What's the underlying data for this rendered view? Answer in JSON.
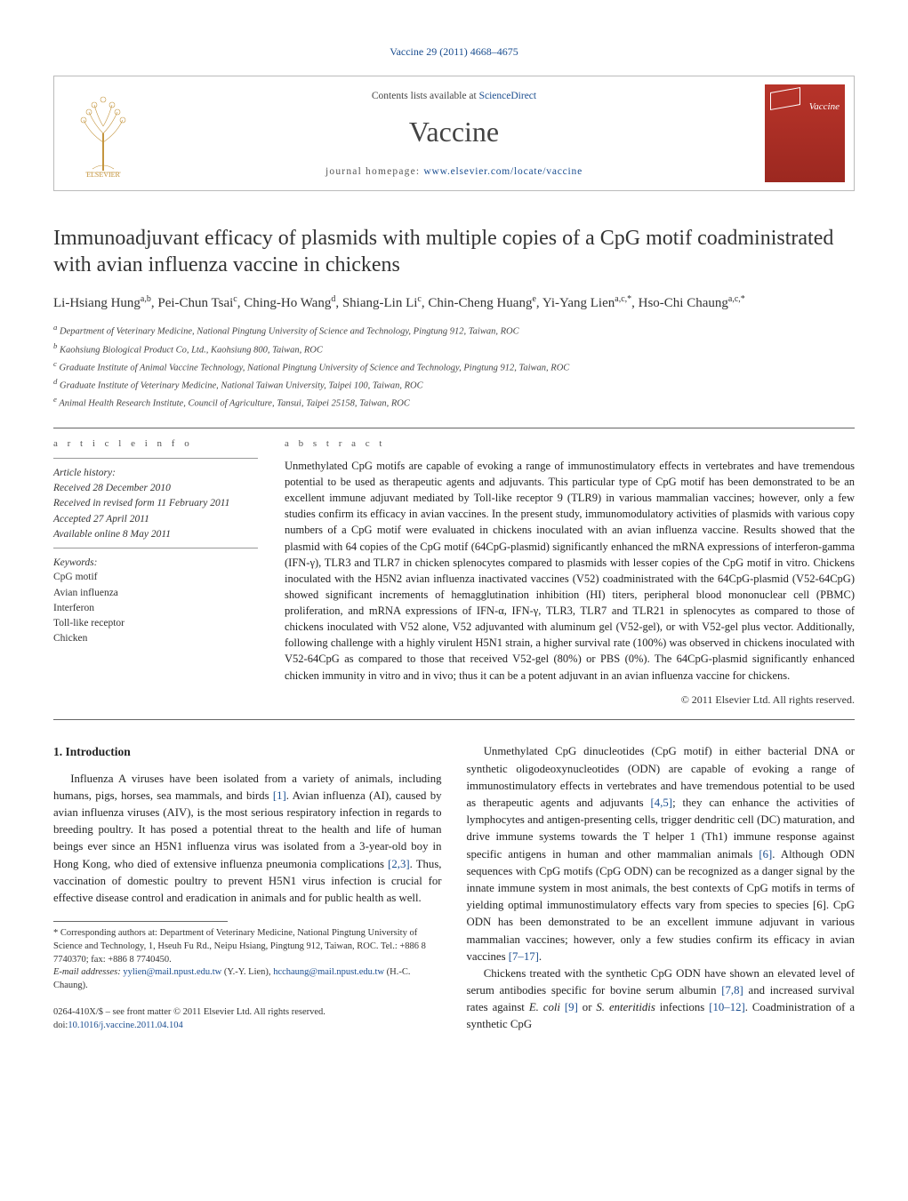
{
  "journal_ref_prefix": "Vaccine 29 (2011) 4668–4675",
  "header": {
    "contents_prefix": "Contents lists available at ",
    "contents_link": "ScienceDirect",
    "journal_name": "Vaccine",
    "homepage_prefix": "journal homepage: ",
    "homepage_link": "www.elsevier.com/locate/vaccine",
    "cover_label": "Vaccine"
  },
  "article": {
    "title": "Immunoadjuvant efficacy of plasmids with multiple copies of a CpG motif coadministrated with avian influenza vaccine in chickens",
    "authors_html": "Li-Hsiang Hung<sup>a,b</sup>, Pei-Chun Tsai<sup>c</sup>, Ching-Ho Wang<sup>d</sup>, Shiang-Lin Li<sup>c</sup>, Chin-Cheng Huang<sup>e</sup>, Yi-Yang Lien<sup>a,c,*</sup>, Hso-Chi Chaung<sup>a,c,*</sup>",
    "affiliations": [
      "a Department of Veterinary Medicine, National Pingtung University of Science and Technology, Pingtung 912, Taiwan, ROC",
      "b Kaohsiung Biological Product Co, Ltd., Kaohsiung 800, Taiwan, ROC",
      "c Graduate Institute of Animal Vaccine Technology, National Pingtung University of Science and Technology, Pingtung 912, Taiwan, ROC",
      "d Graduate Institute of Veterinary Medicine, National Taiwan University, Taipei 100, Taiwan, ROC",
      "e Animal Health Research Institute, Council of Agriculture, Tansui, Taipei 25158, Taiwan, ROC"
    ]
  },
  "info": {
    "head": "a r t i c l e   i n f o",
    "history_label": "Article history:",
    "history": [
      "Received 28 December 2010",
      "Received in revised form 11 February 2011",
      "Accepted 27 April 2011",
      "Available online 8 May 2011"
    ],
    "keywords_label": "Keywords:",
    "keywords": [
      "CpG motif",
      "Avian influenza",
      "Interferon",
      "Toll-like receptor",
      "Chicken"
    ]
  },
  "abstract": {
    "head": "a b s t r a c t",
    "text": "Unmethylated CpG motifs are capable of evoking a range of immunostimulatory effects in vertebrates and have tremendous potential to be used as therapeutic agents and adjuvants. This particular type of CpG motif has been demonstrated to be an excellent immune adjuvant mediated by Toll-like receptor 9 (TLR9) in various mammalian vaccines; however, only a few studies confirm its efficacy in avian vaccines. In the present study, immunomodulatory activities of plasmids with various copy numbers of a CpG motif were evaluated in chickens inoculated with an avian influenza vaccine. Results showed that the plasmid with 64 copies of the CpG motif (64CpG-plasmid) significantly enhanced the mRNA expressions of interferon-gamma (IFN-γ), TLR3 and TLR7 in chicken splenocytes compared to plasmids with lesser copies of the CpG motif in vitro. Chickens inoculated with the H5N2 avian influenza inactivated vaccines (V52) coadministrated with the 64CpG-plasmid (V52-64CpG) showed significant increments of hemagglutination inhibition (HI) titers, peripheral blood mononuclear cell (PBMC) proliferation, and mRNA expressions of IFN-α, IFN-γ, TLR3, TLR7 and TLR21 in splenocytes as compared to those of chickens inoculated with V52 alone, V52 adjuvanted with aluminum gel (V52-gel), or with V52-gel plus vector. Additionally, following challenge with a highly virulent H5N1 strain, a higher survival rate (100%) was observed in chickens inoculated with V52-64CpG as compared to those that received V52-gel (80%) or PBS (0%). The 64CpG-plasmid significantly enhanced chicken immunity in vitro and in vivo; thus it can be a potent adjuvant in an avian influenza vaccine for chickens.",
    "copyright": "© 2011 Elsevier Ltd. All rights reserved."
  },
  "body": {
    "intro_head": "1.  Introduction",
    "p1": "Influenza A viruses have been isolated from a variety of animals, including humans, pigs, horses, sea mammals, and birds [1]. Avian influenza (AI), caused by avian influenza viruses (AIV), is the most serious respiratory infection in regards to breeding poultry. It has posed a potential threat to the health and life of human beings ever since an H5N1 influenza virus was isolated from a 3-year-old boy in Hong Kong, who died of extensive influenza pneumonia complications [2,3]. Thus, vaccination of domestic poultry to prevent H5N1 virus infection is crucial for effective disease control and eradication in animals and for public health as well.",
    "p2": "Unmethylated CpG dinucleotides (CpG motif) in either bacterial DNA or synthetic oligodeoxynucleotides (ODN) are capable of evoking a range of immunostimulatory effects in vertebrates and have tremendous potential to be used as therapeutic agents and adjuvants [4,5]; they can enhance the activities of lymphocytes and antigen-presenting cells, trigger dendritic cell (DC) maturation, and drive immune systems towards the T helper 1 (Th1) immune response against specific antigens in human and other mammalian animals [6]. Although ODN sequences with CpG motifs (CpG ODN) can be recognized as a danger signal by the innate immune system in most animals, the best contexts of CpG motifs in terms of yielding optimal immunostimulatory effects vary from species to species [6]. CpG ODN has been demonstrated to be an excellent immune adjuvant in various mammalian vaccines; however, only a few studies confirm its efficacy in avian vaccines [7–17].",
    "p3": "Chickens treated with the synthetic CpG ODN have shown an elevated level of serum antibodies specific for bovine serum albumin [7,8] and increased survival rates against E. coli [9] or S. enteritidis infections [10–12]. Coadministration of a synthetic CpG"
  },
  "footnote": {
    "corr_label": "* Corresponding authors at: Department of Veterinary Medicine, National Pingtung University of Science and Technology, 1, Hseuh Fu Rd., Neipu Hsiang, Pingtung 912, Taiwan, ROC. Tel.: +886 8 7740370; fax: +886 8 7740450.",
    "email_label": "E-mail addresses: ",
    "email1": "yylien@mail.npust.edu.tw",
    "email1_who": " (Y.-Y. Lien), ",
    "email2": "hcchaung@mail.npust.edu.tw",
    "email2_who": " (H.-C. Chaung)."
  },
  "footer": {
    "issn_line": "0264-410X/$ – see front matter © 2011 Elsevier Ltd. All rights reserved.",
    "doi_prefix": "doi:",
    "doi": "10.1016/j.vaccine.2011.04.104"
  },
  "refs": {
    "r1": "[1]",
    "r23": "[2,3]",
    "r45": "[4,5]",
    "r6a": "[6]",
    "r6b": "[6]",
    "r7_17": "[7–17]",
    "r78": "[7,8]",
    "r9": "[9]",
    "r10_12": "[10–12]"
  },
  "colors": {
    "link": "#1a4d8f",
    "cover_bg_top": "#b8342a",
    "cover_bg_bot": "#9c2820",
    "rule": "#666666",
    "text": "#222222"
  }
}
